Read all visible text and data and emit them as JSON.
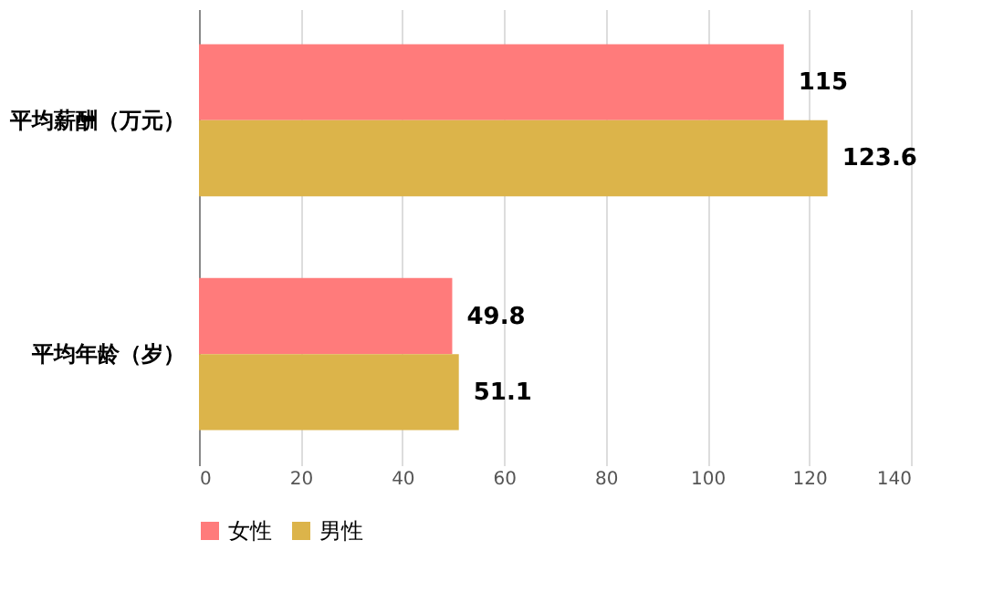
{
  "chart_data": {
    "type": "bar",
    "orientation": "horizontal",
    "categories": [
      "平均薪酬（万元）",
      "平均年龄（岁）"
    ],
    "series": [
      {
        "name": "女性",
        "color": "#ff7b7b",
        "values": [
          115,
          49.8
        ]
      },
      {
        "name": "男性",
        "color": "#dcb44a",
        "values": [
          123.6,
          51.1
        ]
      }
    ],
    "xlim": [
      0,
      140
    ],
    "xticks": [
      0,
      20,
      40,
      60,
      80,
      100,
      120,
      140
    ],
    "grid": "x",
    "legend": "bottom",
    "data_labels": true
  }
}
